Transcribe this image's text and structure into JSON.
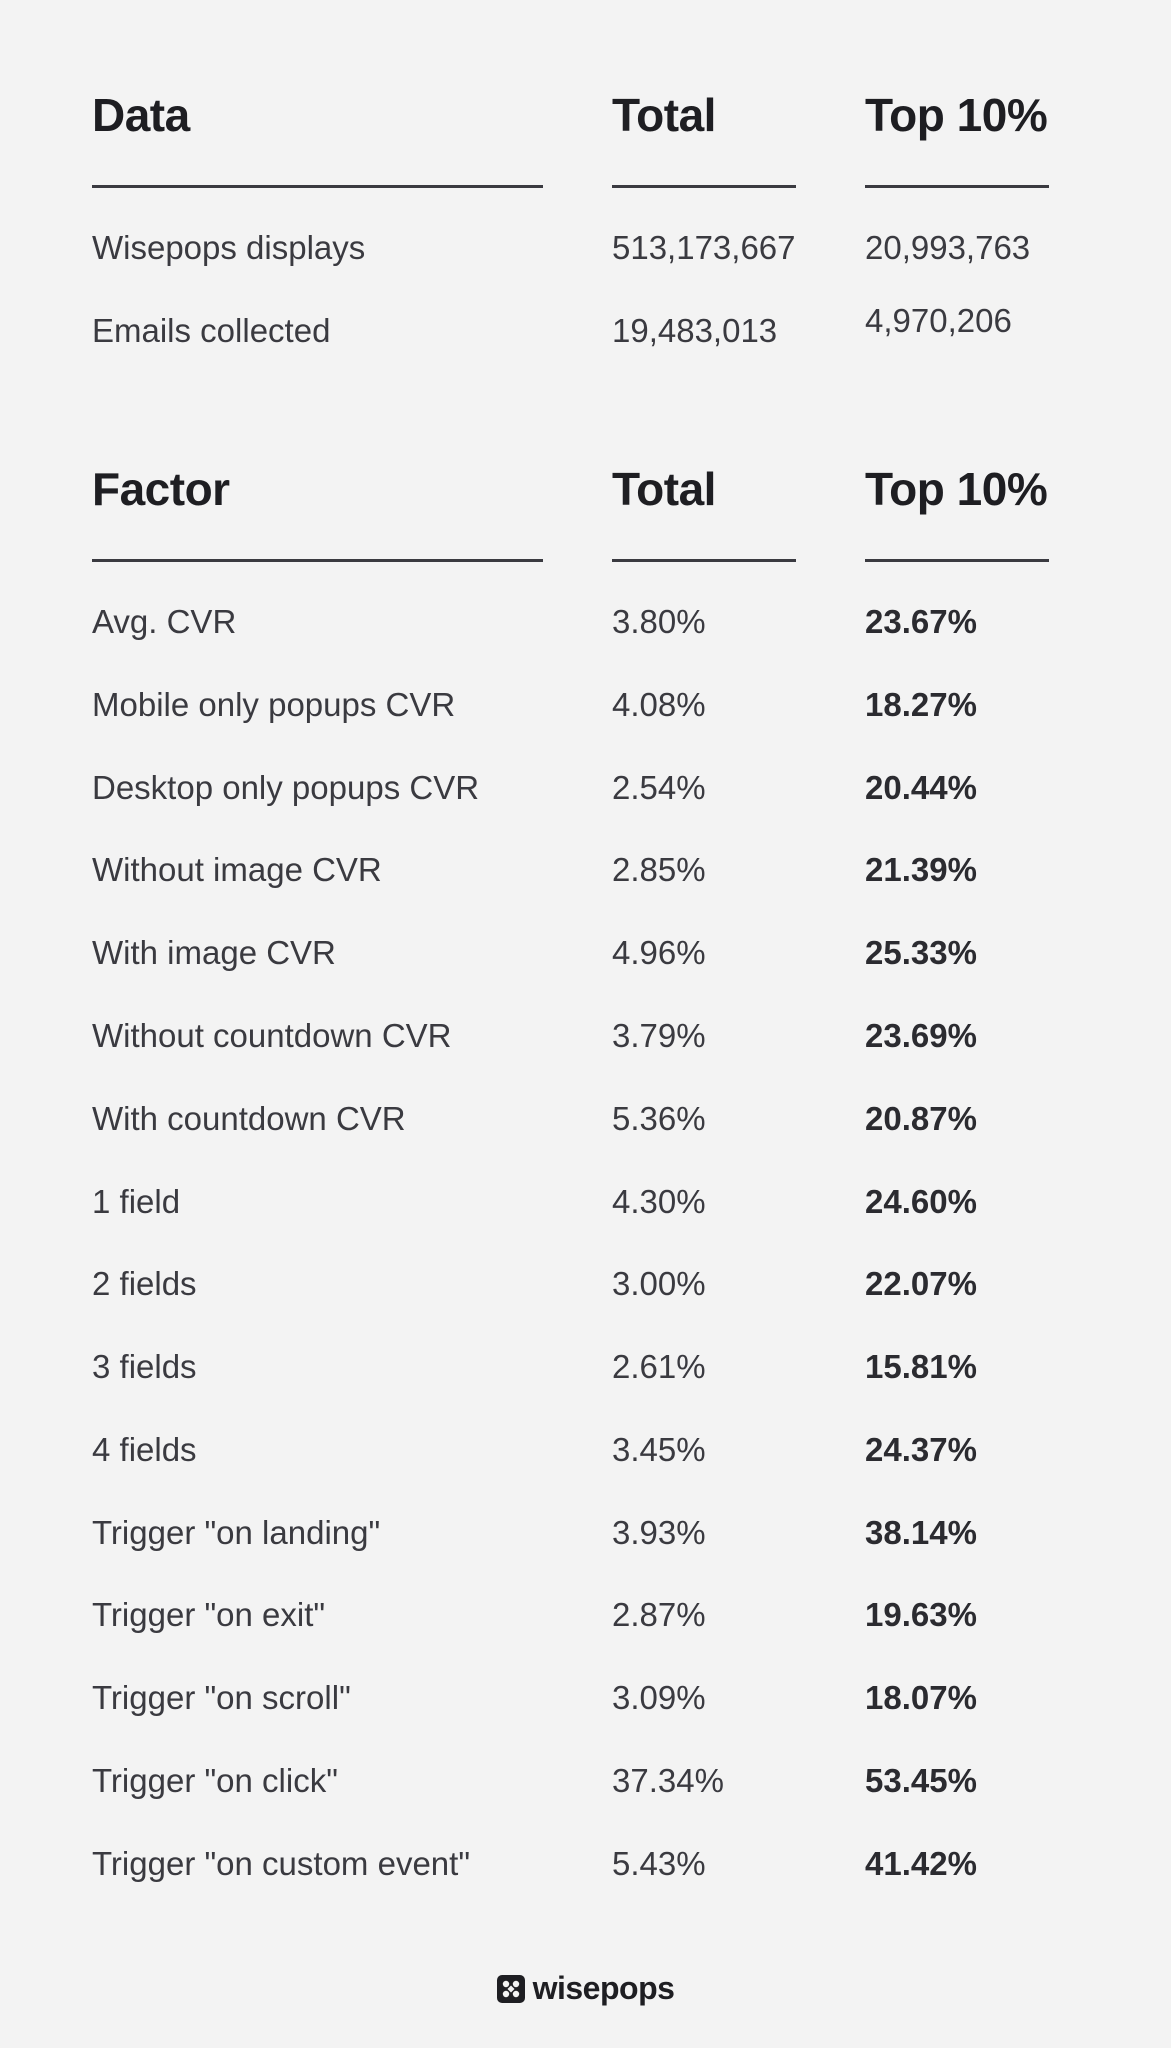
{
  "data_table": {
    "headers": [
      "Data",
      "Total",
      "Top 10%"
    ],
    "rows": [
      {
        "label": "Wisepops displays",
        "total": "513,173,667",
        "top": "20,993,763"
      },
      {
        "label": "Emails collected",
        "total": "19,483,013",
        "top": "4,970,206"
      }
    ]
  },
  "factor_table": {
    "headers": [
      "Factor",
      "Total",
      "Top 10%"
    ],
    "rows": [
      {
        "label": "Avg. CVR",
        "total": "3.80%",
        "top": "23.67%"
      },
      {
        "label": "Mobile only popups CVR",
        "total": "4.08%",
        "top": "18.27%"
      },
      {
        "label": "Desktop only popups CVR",
        "total": "2.54%",
        "top": "20.44%"
      },
      {
        "label": "Without image CVR",
        "total": "2.85%",
        "top": "21.39%"
      },
      {
        "label": "With image CVR",
        "total": "4.96%",
        "top": "25.33%"
      },
      {
        "label": "Without countdown CVR",
        "total": "3.79%",
        "top": "23.69%"
      },
      {
        "label": "With countdown CVR",
        "total": "5.36%",
        "top": "20.87%"
      },
      {
        "label": "1 field",
        "total": "4.30%",
        "top": "24.60%"
      },
      {
        "label": "2 fields",
        "total": "3.00%",
        "top": "22.07%"
      },
      {
        "label": "3 fields",
        "total": "2.61%",
        "top": "15.81%"
      },
      {
        "label": "4 fields",
        "total": "3.45%",
        "top": "24.37%"
      },
      {
        "label": "Trigger \"on landing\"",
        "total": "3.93%",
        "top": "38.14%"
      },
      {
        "label": "Trigger \"on exit\"",
        "total": "2.87%",
        "top": "19.63%"
      },
      {
        "label": "Trigger \"on scroll\"",
        "total": "3.09%",
        "top": "18.07%"
      },
      {
        "label": "Trigger \"on click\"",
        "total": "37.34%",
        "top": "53.45%"
      },
      {
        "label": "Trigger \"on custom event\"",
        "total": "5.43%",
        "top": "41.42%"
      }
    ]
  },
  "brand": {
    "name": "wisepops",
    "icon": "wisepops-logo-icon"
  }
}
